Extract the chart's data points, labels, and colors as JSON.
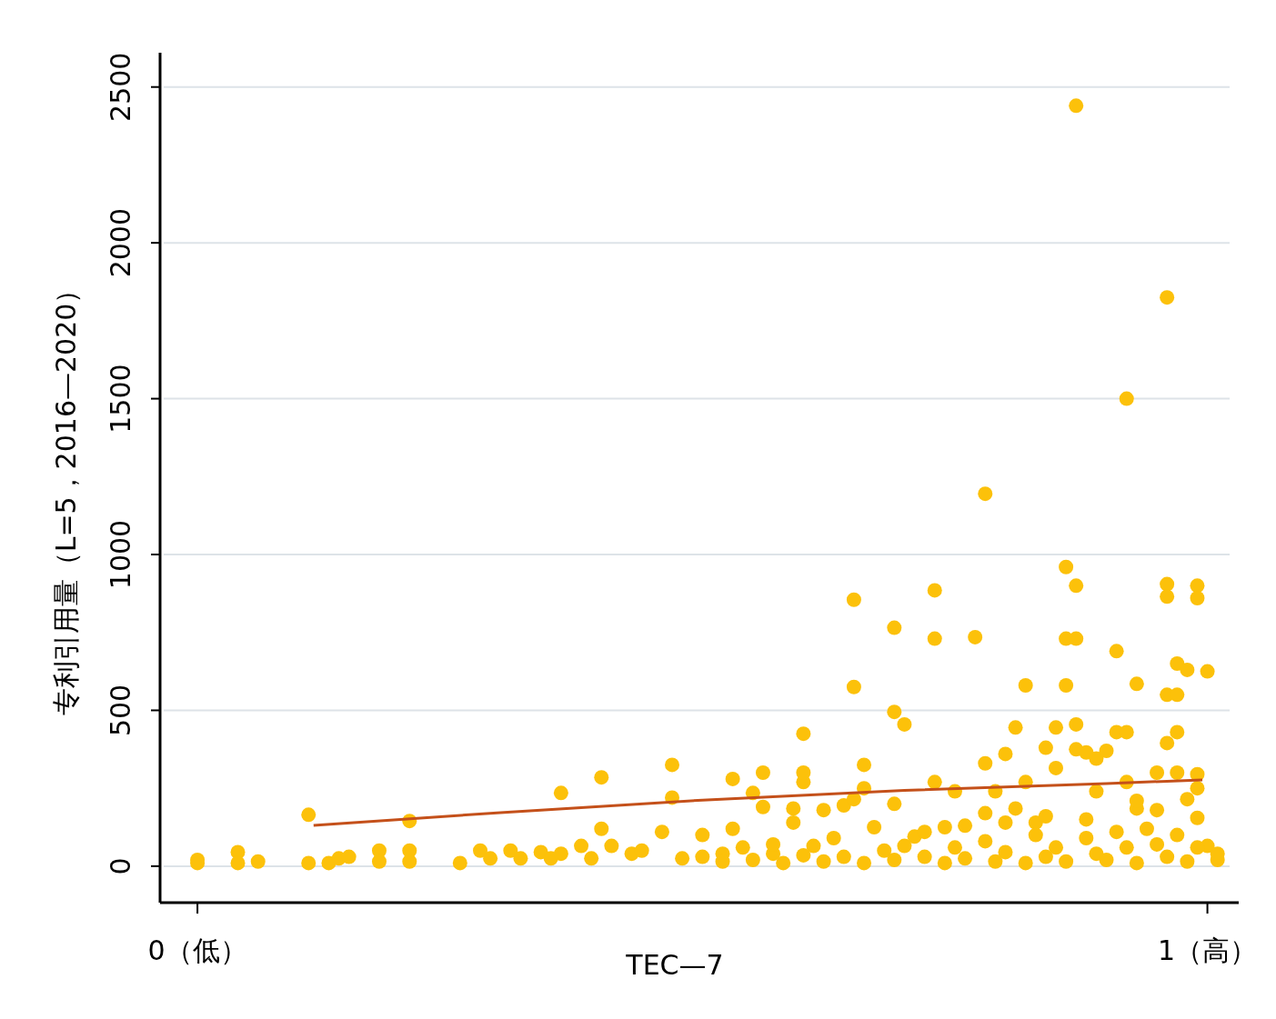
{
  "chart_data": {
    "type": "scatter",
    "xlabel": "TEC—7",
    "ylabel": "专利引用量（L=5，2016—2020）",
    "xlim": [
      -0.037,
      1.031
    ],
    "ylim": [
      -117,
      2610
    ],
    "xticks": [
      {
        "value": 0,
        "label": "0（低）"
      },
      {
        "value": 1,
        "label": "1（高）"
      }
    ],
    "yticks": [
      0,
      500,
      1000,
      1500,
      2000,
      2500
    ],
    "grid": "y",
    "series": [
      {
        "marker": "circle",
        "color": "#fcc10a",
        "x": [
          0.0,
          0.0,
          0.04,
          0.04,
          0.06,
          0.11,
          0.11,
          0.13,
          0.14,
          0.15,
          0.18,
          0.18,
          0.21,
          0.21,
          0.21,
          0.26,
          0.28,
          0.29,
          0.31,
          0.32,
          0.34,
          0.35,
          0.36,
          0.36,
          0.38,
          0.39,
          0.4,
          0.4,
          0.41,
          0.43,
          0.44,
          0.46,
          0.47,
          0.47,
          0.48,
          0.5,
          0.52,
          0.53,
          0.53,
          0.55,
          0.56,
          0.56,
          0.57,
          0.59,
          0.59,
          0.6,
          0.6,
          0.6,
          0.61,
          0.62,
          0.64,
          0.65,
          0.65,
          0.65,
          0.66,
          0.66,
          0.67,
          0.69,
          0.69,
          0.7,
          0.69,
          0.7,
          0.73,
          0.73,
          0.73,
          0.74,
          0.75,
          0.77,
          0.78,
          0.78,
          0.78,
          0.79,
          0.8,
          0.81,
          0.82,
          0.82,
          0.81,
          0.83,
          0.84,
          0.85,
          0.86,
          0.86,
          0.87,
          0.86,
          0.87,
          0.87,
          0.87,
          0.87,
          0.88,
          0.85,
          0.89,
          0.89,
          0.91,
          0.9,
          0.91,
          0.92,
          0.92,
          0.93,
          0.92,
          0.93,
          0.95,
          0.96,
          0.96,
          0.96,
          0.97,
          0.96,
          0.97,
          0.97,
          0.96,
          0.98,
          0.99,
          0.99,
          1.0,
          0.97,
          0.99,
          0.99,
          0.99,
          0.98,
          1.0,
          1.01,
          1.01,
          0.5,
          0.52,
          0.54,
          0.55,
          0.57,
          0.58,
          0.6,
          0.62,
          0.63,
          0.64,
          0.66,
          0.68,
          0.69,
          0.71,
          0.72,
          0.74,
          0.75,
          0.76,
          0.78,
          0.79,
          0.8,
          0.82,
          0.83,
          0.84,
          0.85,
          0.86,
          0.88,
          0.89,
          0.9,
          0.91,
          0.92,
          0.93,
          0.94,
          0.95,
          0.96,
          0.97,
          0.98,
          0.99,
          0.95,
          0.93,
          0.88,
          0.84,
          0.8,
          0.76,
          0.72
        ],
        "values": [
          10,
          20,
          45,
          10,
          15,
          165,
          10,
          10,
          25,
          30,
          50,
          15,
          145,
          50,
          15,
          10,
          50,
          25,
          50,
          25,
          45,
          25,
          235,
          40,
          65,
          25,
          285,
          120,
          65,
          40,
          50,
          110,
          220,
          325,
          25,
          100,
          40,
          280,
          120,
          235,
          300,
          190,
          40,
          185,
          140,
          425,
          270,
          300,
          65,
          180,
          195,
          855,
          575,
          215,
          325,
          250,
          125,
          765,
          495,
          455,
          200,
          65,
          885,
          730,
          270,
          125,
          240,
          735,
          330,
          170,
          1195,
          240,
          360,
          445,
          580,
          270,
          185,
          140,
          380,
          445,
          730,
          580,
          730,
          960,
          2440,
          455,
          900,
          375,
          365,
          315,
          240,
          345,
          690,
          370,
          430,
          430,
          1500,
          585,
          270,
          185,
          300,
          1825,
          905,
          865,
          650,
          550,
          550,
          430,
          395,
          630,
          900,
          860,
          625,
          300,
          295,
          250,
          155,
          215,
          65,
          20,
          40,
          30,
          15,
          60,
          20,
          70,
          10,
          35,
          15,
          90,
          30,
          10,
          50,
          20,
          95,
          30,
          10,
          60,
          25,
          80,
          15,
          45,
          10,
          100,
          30,
          60,
          15,
          90,
          40,
          20,
          110,
          60,
          10,
          120,
          70,
          30,
          100,
          15,
          60,
          180,
          210,
          150,
          160,
          140,
          130,
          110
        ]
      },
      {
        "type": "line",
        "color": "#c4501a",
        "x": [
          0.115,
          0.3,
          0.5,
          0.7,
          0.9,
          0.995
        ],
        "values": [
          131,
          172,
          212,
          243,
          265,
          277
        ]
      }
    ]
  }
}
